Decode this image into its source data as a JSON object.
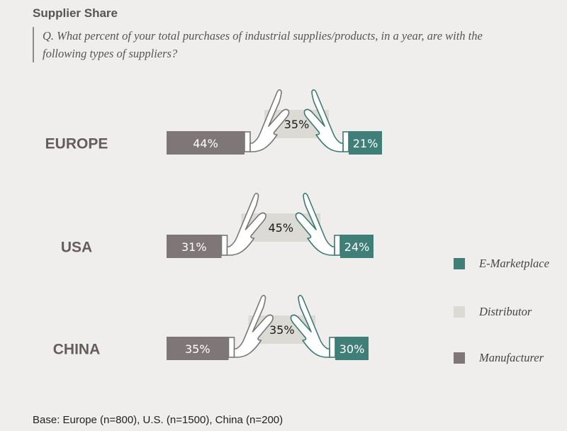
{
  "title": "Supplier Share",
  "question": "Q. What percent of your total purchases of industrial supplies/products, in a year, are with the following types of suppliers?",
  "base_note": "Base: Europe (n=800), U.S. (n=1500), China (n=200)",
  "colors": {
    "manufacturer": "#7e7677",
    "distributor": "#dcdad5",
    "emarketplace": "#3f7f77",
    "region_label": "#655d5c",
    "hand_stroke_left": "#777777",
    "hand_stroke_right": "#3c7a72",
    "background": "#efeeec"
  },
  "legend": [
    {
      "name": "E-Marketplace",
      "color_key": "emarketplace"
    },
    {
      "name": "Distributor",
      "color_key": "distributor"
    },
    {
      "name": "Manufacturer",
      "color_key": "manufacturer"
    }
  ],
  "chart_data": {
    "type": "bar",
    "categories": [
      "EUROPE",
      "USA",
      "CHINA"
    ],
    "series": [
      {
        "name": "Manufacturer",
        "values": [
          44,
          31,
          35
        ],
        "labels": [
          "44%",
          "31%",
          "35%"
        ]
      },
      {
        "name": "Distributor",
        "values": [
          35,
          45,
          35
        ],
        "labels": [
          "35%",
          "45%",
          "35%"
        ]
      },
      {
        "name": "E-Marketplace",
        "values": [
          21,
          24,
          30
        ],
        "labels": [
          "21%",
          "24%",
          "30%"
        ]
      }
    ],
    "unit": "%"
  }
}
